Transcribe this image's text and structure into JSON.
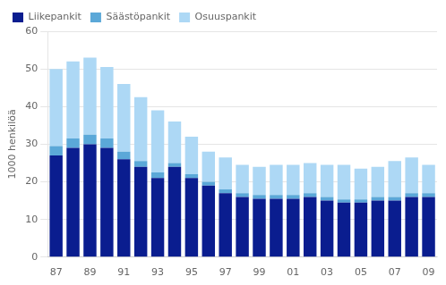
{
  "chart_data": {
    "type": "bar",
    "stacked": true,
    "ylabel": "1000 henkilöä",
    "categories": [
      "87",
      null,
      "89",
      null,
      "91",
      null,
      "93",
      null,
      "95",
      null,
      "97",
      null,
      "99",
      null,
      "01",
      null,
      "03",
      null,
      "05",
      null,
      "07",
      null,
      "09"
    ],
    "series": [
      {
        "name": "Liikepankit",
        "color": "#0A1D8F",
        "values": [
          27,
          29,
          30,
          29,
          26,
          24,
          21,
          24,
          21,
          19,
          17,
          16,
          15.5,
          15.5,
          15.5,
          16,
          15,
          14.5,
          14.5,
          15,
          15,
          16,
          16
        ]
      },
      {
        "name": "Säästöpankit",
        "color": "#5BA8D8",
        "values": [
          2.5,
          2.5,
          2.5,
          2.5,
          2.0,
          1.5,
          1.5,
          1.0,
          1.0,
          1.0,
          1.0,
          1.0,
          1.0,
          1.0,
          1.0,
          1.0,
          1.0,
          0.8,
          0.8,
          1.0,
          1.0,
          1.0,
          1.0
        ]
      },
      {
        "name": "Osuuspankit",
        "color": "#ADD8F5",
        "values": [
          20.5,
          20.5,
          20.5,
          19.0,
          18.0,
          17.0,
          16.5,
          11.0,
          10.0,
          8.0,
          8.5,
          7.5,
          7.5,
          8.0,
          8.0,
          8.0,
          8.5,
          9.2,
          8.2,
          8.0,
          9.5,
          9.5,
          7.5
        ]
      }
    ],
    "ylim": [
      0,
      60
    ],
    "yticks": [
      0,
      10,
      20,
      30,
      40,
      50,
      60
    ],
    "grid": true,
    "legend": "upper left"
  }
}
